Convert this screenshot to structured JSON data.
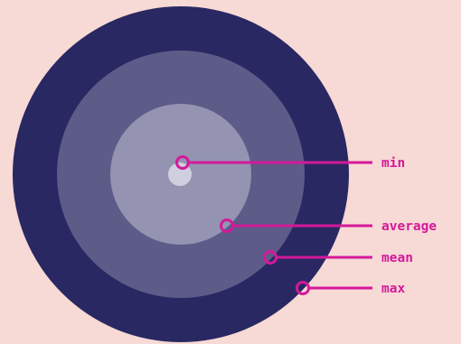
{
  "colors": {
    "background": "#f7d9d5",
    "ring_outer": "#292862",
    "ring_middle": "#5d5b88",
    "ring_inner": "#9494b2",
    "core": "#cfcfdf",
    "accent": "#d4199a"
  },
  "labels": {
    "min": "min",
    "average": "average",
    "mean": "mean",
    "max": "max"
  }
}
